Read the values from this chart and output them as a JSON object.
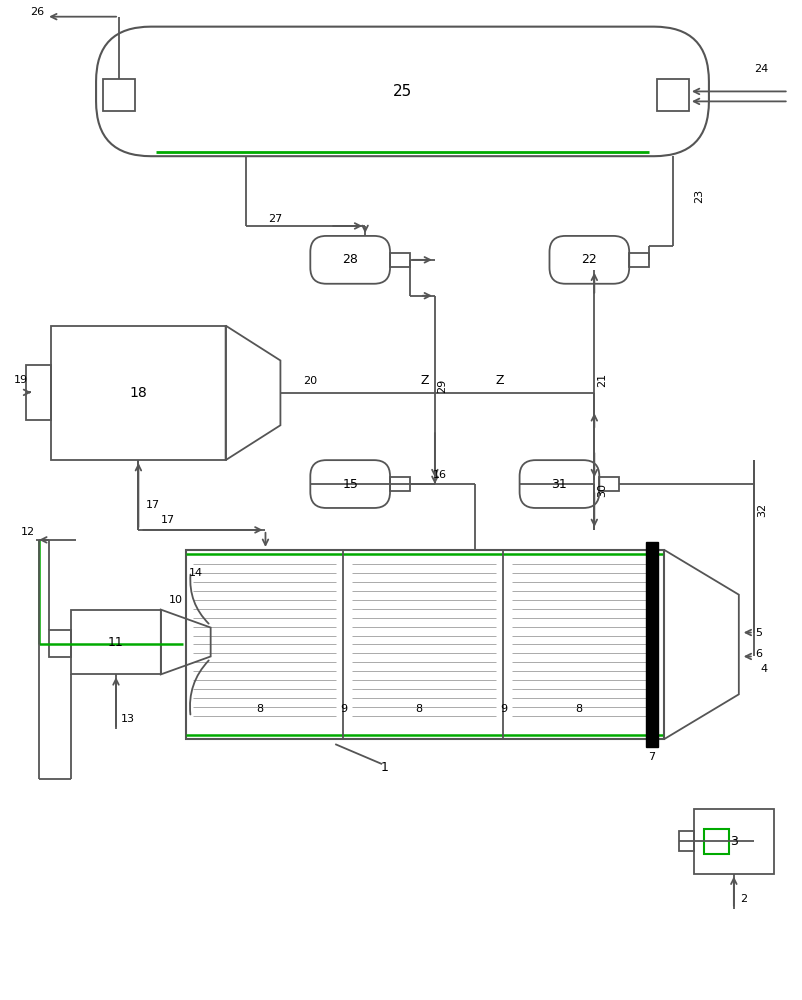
{
  "bg_color": "#ffffff",
  "lc": "#555555",
  "gc": "#00aa00",
  "fig_w": 8.02,
  "fig_h": 10.0,
  "dpi": 100
}
